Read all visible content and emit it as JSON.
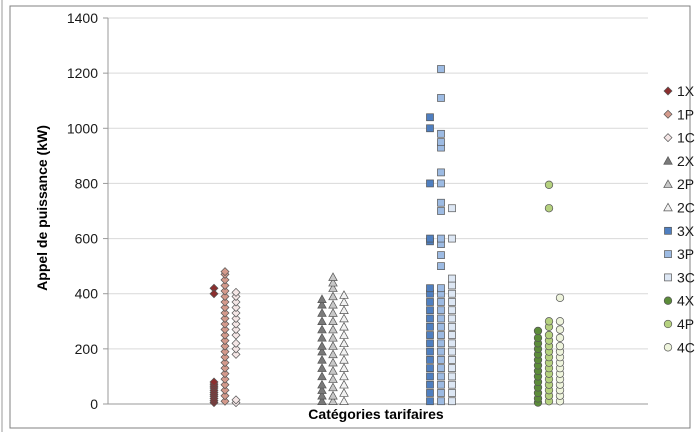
{
  "chart_data": {
    "type": "scatter",
    "xlabel": "Catégories tarifaires",
    "ylabel": "Appel de puissance (kW)",
    "ylim": [
      0,
      1400
    ],
    "yticks": [
      0,
      200,
      400,
      600,
      800,
      1000,
      1200,
      1400
    ],
    "grid": true,
    "legend_position": "right",
    "series": [
      {
        "name": "1X",
        "marker": "diamond",
        "color": "#8b2e2e",
        "x": 1,
        "y": [
          5,
          12,
          20,
          28,
          35,
          42,
          50,
          58,
          65,
          72,
          80,
          420,
          400
        ]
      },
      {
        "name": "1P",
        "marker": "diamond",
        "color": "#d49a8c",
        "x": 1.1,
        "y": [
          10,
          30,
          50,
          70,
          90,
          110,
          130,
          150,
          170,
          190,
          210,
          230,
          250,
          270,
          290,
          310,
          330,
          350,
          370,
          390,
          410,
          430,
          450,
          470,
          480
        ]
      },
      {
        "name": "1C",
        "marker": "diamond",
        "color": "#f4e6e6",
        "x": 1.2,
        "y": [
          5,
          15,
          180,
          200,
          220,
          250,
          270,
          290,
          310,
          330,
          350,
          370,
          390,
          405
        ]
      },
      {
        "name": "2X",
        "marker": "triangle",
        "color": "#7a7a7a",
        "x": 2,
        "y": [
          10,
          30,
          50,
          70,
          100,
          130,
          160,
          190,
          210,
          240,
          270,
          300,
          330,
          360,
          380
        ]
      },
      {
        "name": "2P",
        "marker": "triangle",
        "color": "#c8c8c8",
        "x": 2.1,
        "y": [
          10,
          30,
          60,
          90,
          120,
          150,
          180,
          210,
          240,
          270,
          300,
          330,
          360,
          390,
          420,
          440,
          460
        ]
      },
      {
        "name": "2C",
        "marker": "triangle",
        "color": "#f2f2f2",
        "x": 2.2,
        "y": [
          10,
          40,
          70,
          100,
          130,
          160,
          190,
          220,
          250,
          280,
          310,
          340,
          370,
          395
        ]
      },
      {
        "name": "3X",
        "marker": "square",
        "color": "#4f7fc0",
        "x": 3,
        "y": [
          10,
          40,
          70,
          100,
          130,
          160,
          190,
          220,
          250,
          280,
          310,
          340,
          370,
          400,
          420,
          590,
          600,
          800,
          1000,
          1040
        ]
      },
      {
        "name": "3P",
        "marker": "square",
        "color": "#9dbbe3",
        "x": 3.1,
        "y": [
          10,
          40,
          70,
          100,
          130,
          160,
          190,
          220,
          250,
          280,
          310,
          340,
          370,
          400,
          420,
          500,
          540,
          580,
          600,
          700,
          730,
          800,
          840,
          930,
          950,
          980,
          1110,
          1215
        ]
      },
      {
        "name": "3C",
        "marker": "square",
        "color": "#dde7f4",
        "x": 3.2,
        "y": [
          10,
          40,
          70,
          100,
          130,
          160,
          190,
          220,
          250,
          280,
          310,
          340,
          370,
          400,
          430,
          455,
          600,
          710
        ]
      },
      {
        "name": "4X",
        "marker": "circle",
        "color": "#5c8c3a",
        "x": 4,
        "y": [
          5,
          20,
          40,
          60,
          80,
          100,
          120,
          140,
          160,
          180,
          200,
          220,
          240,
          265
        ]
      },
      {
        "name": "4P",
        "marker": "circle",
        "color": "#b5d17f",
        "x": 4.1,
        "y": [
          10,
          30,
          50,
          70,
          90,
          110,
          130,
          150,
          170,
          190,
          210,
          230,
          250,
          280,
          300,
          710,
          795
        ]
      },
      {
        "name": "4C",
        "marker": "circle",
        "color": "#eef4dc",
        "x": 4.2,
        "y": [
          10,
          30,
          50,
          70,
          90,
          110,
          130,
          150,
          170,
          190,
          210,
          240,
          270,
          300,
          385
        ]
      }
    ]
  }
}
